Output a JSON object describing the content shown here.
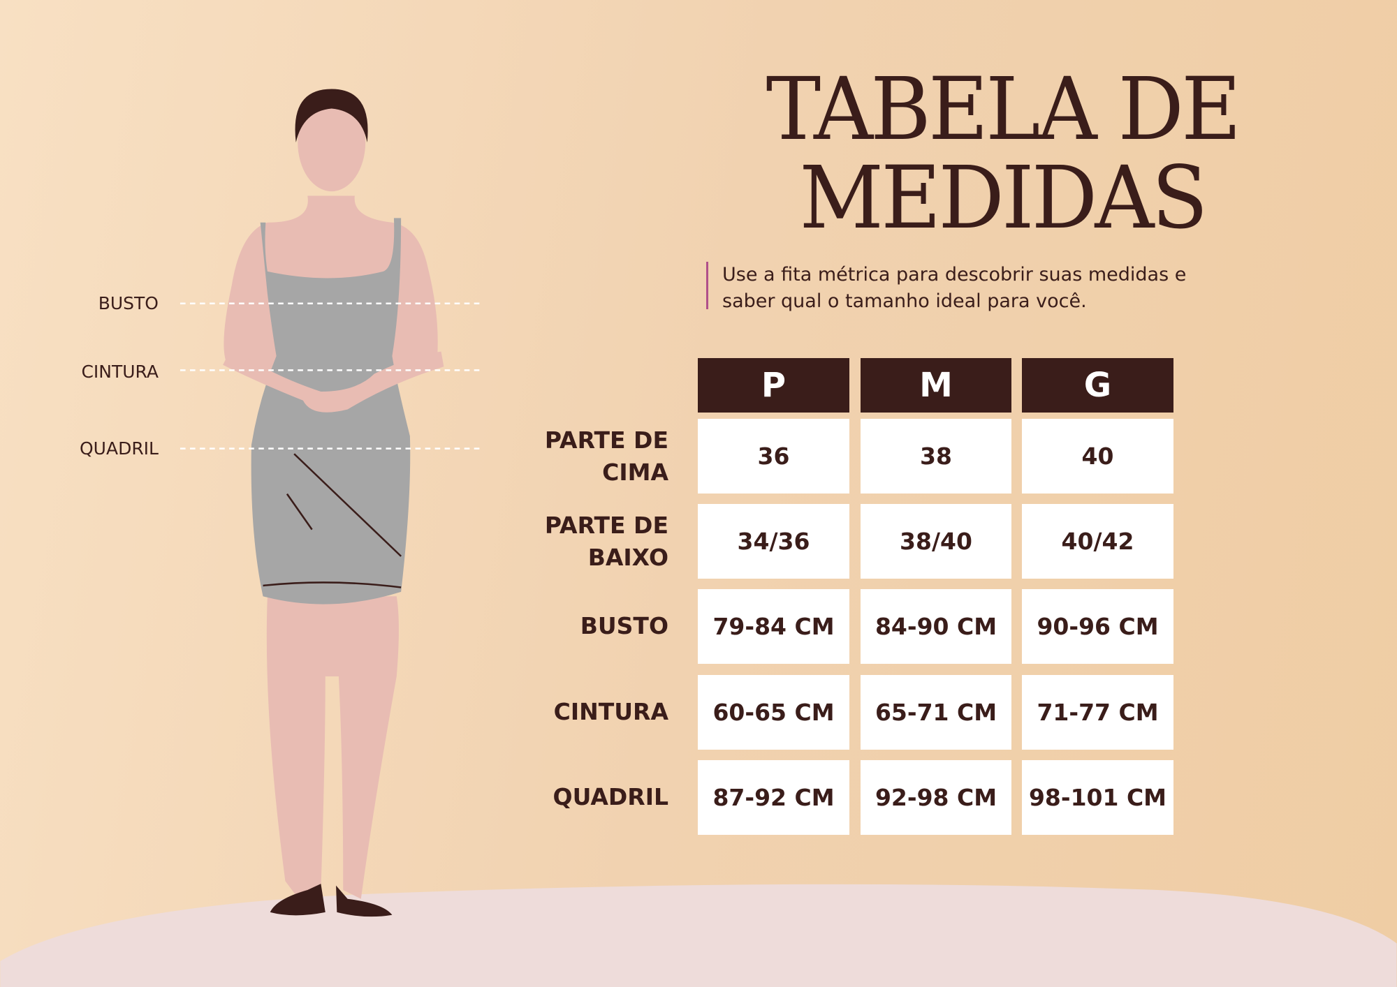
{
  "title": {
    "line1": "TABELA DE",
    "line2": "MEDIDAS"
  },
  "subtitle": "Use a fita métrica para descobrir suas medidas e saber qual o tamanho ideal para você.",
  "measure_labels": [
    "BUSTO",
    "CINTURA",
    "QUADRIL"
  ],
  "table": {
    "columns": [
      "P",
      "M",
      "G"
    ],
    "rows": [
      {
        "label": "PARTE DE CIMA",
        "values": [
          "36",
          "38",
          "40"
        ]
      },
      {
        "label": "PARTE DE BAIXO",
        "values": [
          "34/36",
          "38/40",
          "40/42"
        ]
      },
      {
        "label": "BUSTO",
        "values": [
          "79-84 CM",
          "84-90 CM",
          "90-96 CM"
        ]
      },
      {
        "label": "CINTURA",
        "values": [
          "60-65 CM",
          "65-71 CM",
          "71-77 CM"
        ]
      },
      {
        "label": "QUADRIL",
        "values": [
          "87-92 CM",
          "92-98 CM",
          "98-101 CM"
        ]
      }
    ]
  },
  "colors": {
    "dark": "#3a1d1a",
    "accent": "#b0508a",
    "dress": "#a6a6a6",
    "skin": "#e8bcb3",
    "ground": "#eedcda"
  }
}
